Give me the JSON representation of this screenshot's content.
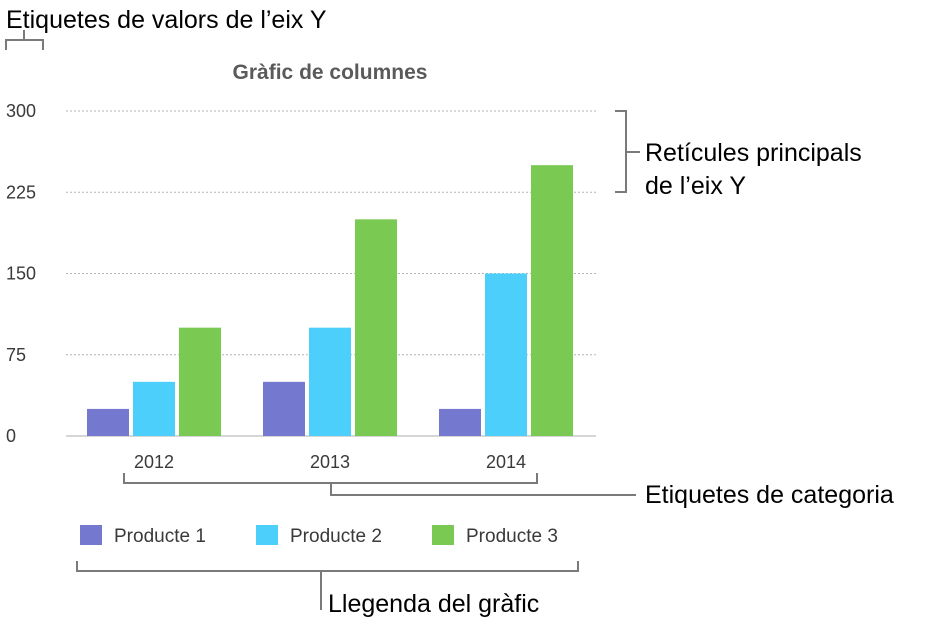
{
  "annotations": {
    "y_axis_labels": "Etiquetes de valors de l’eix Y",
    "gridlines_line1": "Retícules principals",
    "gridlines_line2": "de l’eix Y",
    "category_labels": "Etiquetes de categoria",
    "legend": "Llegenda del gràfic"
  },
  "colors": {
    "series": [
      "#7479cf",
      "#4ccffb",
      "#79c953"
    ],
    "grid": "#b5b5b5",
    "axis": "#c8c8c8"
  },
  "chart_data": {
    "type": "bar",
    "title": "Gràfic de columnes",
    "categories": [
      "2012",
      "2013",
      "2014"
    ],
    "series": [
      {
        "name": "Producte 1",
        "values": [
          25,
          50,
          25
        ]
      },
      {
        "name": "Producte 2",
        "values": [
          50,
          100,
          150
        ]
      },
      {
        "name": "Producte 3",
        "values": [
          100,
          200,
          250
        ]
      }
    ],
    "ylim": [
      0,
      300
    ],
    "yticks": [
      "0",
      "75",
      "150",
      "225",
      "300"
    ],
    "grid": true,
    "legend_position": "bottom"
  }
}
